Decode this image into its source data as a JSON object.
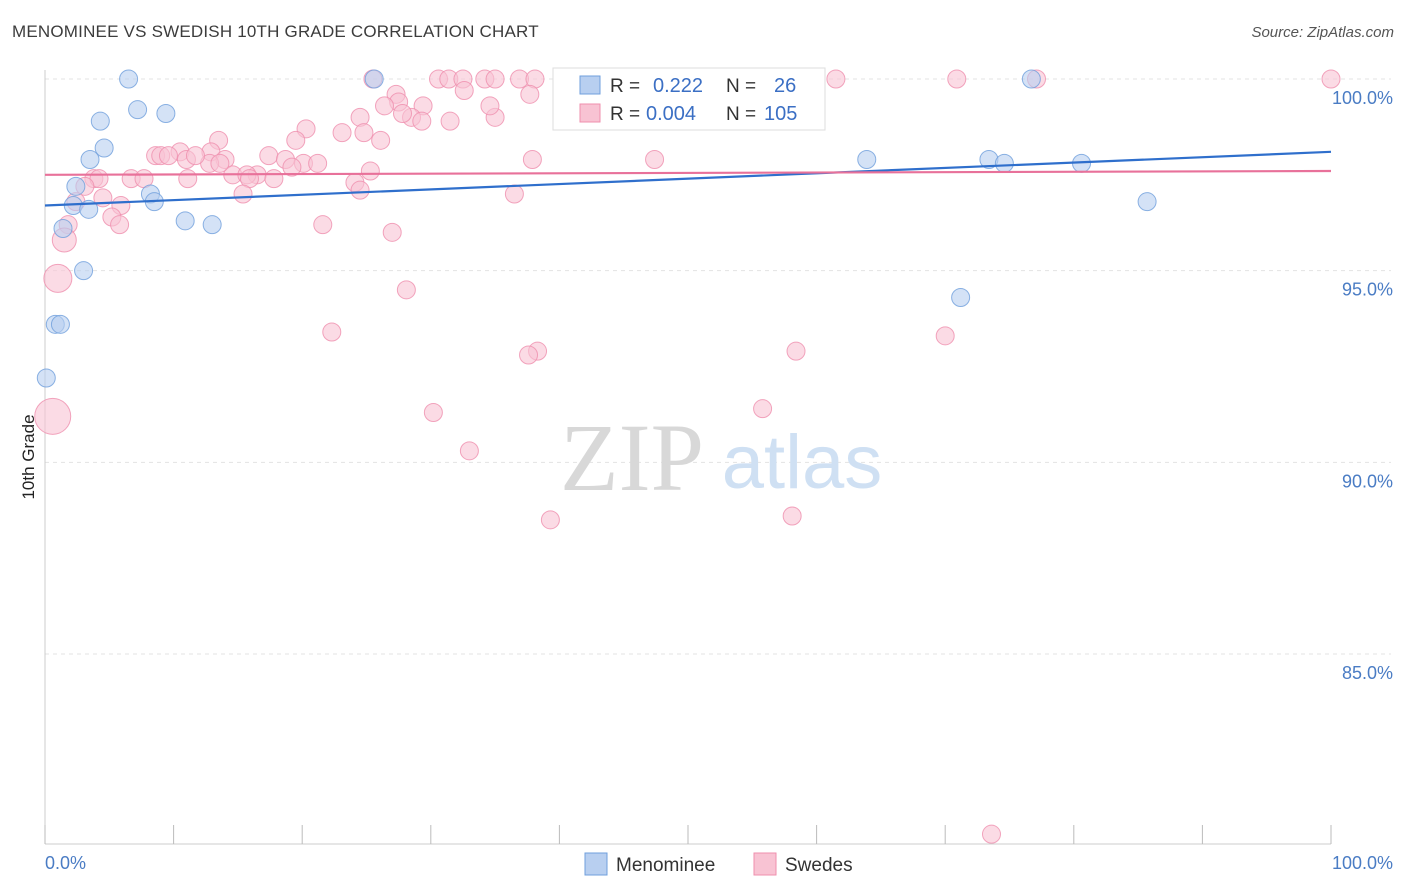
{
  "header": {
    "title": "MENOMINEE VS SWEDISH 10TH GRADE CORRELATION CHART",
    "source": "Source: ZipAtlas.com"
  },
  "watermark": {
    "zip": "ZIP",
    "atlas": "atlas"
  },
  "legend_box": {
    "rows": [
      {
        "r_label": "R =",
        "r_value": "0.222",
        "n_label": "N =",
        "n_value": "26"
      },
      {
        "r_label": "R =",
        "r_value": "0.004",
        "n_label": "N =",
        "n_value": "105"
      }
    ]
  },
  "bottom_legend": {
    "items": [
      "Menominee",
      "Swedes"
    ]
  },
  "colors": {
    "menominee_fill": "#b8cff0",
    "menominee_stroke": "#6f9fdc",
    "menominee_line": "#2f6fcc",
    "swedes_fill": "#f8c3d3",
    "swedes_stroke": "#ef8fae",
    "swedes_line": "#e8719a",
    "axis_text": "#4a7cc4",
    "grid": "#e3e3e3"
  },
  "chart_data": {
    "type": "scatter",
    "title": "MENOMINEE VS SWEDISH 10TH GRADE CORRELATION CHART",
    "xlabel": "",
    "ylabel": "10th Grade",
    "xlim": [
      0,
      100
    ],
    "ylim": [
      80.0,
      100.8
    ],
    "x_tick_labels": [
      "0.0%",
      "100.0%"
    ],
    "y_ticks": [
      85.0,
      90.0,
      95.0,
      100.0
    ],
    "y_tick_labels": [
      "85.0%",
      "90.0%",
      "95.0%",
      "100.0%"
    ],
    "grid": true,
    "legend_position": "top-center",
    "series": [
      {
        "name": "Menominee",
        "trend": {
          "x": [
            0,
            100
          ],
          "y": [
            96.7,
            98.1
          ]
        },
        "points": [
          {
            "x": 6.5,
            "y": 100.0
          },
          {
            "x": 25.6,
            "y": 100.0
          },
          {
            "x": 76.7,
            "y": 100.0
          },
          {
            "x": 7.2,
            "y": 99.2
          },
          {
            "x": 9.4,
            "y": 99.1
          },
          {
            "x": 4.3,
            "y": 98.9
          },
          {
            "x": 4.6,
            "y": 98.2
          },
          {
            "x": 3.5,
            "y": 97.9
          },
          {
            "x": 63.9,
            "y": 97.9
          },
          {
            "x": 73.4,
            "y": 97.9
          },
          {
            "x": 74.6,
            "y": 97.8
          },
          {
            "x": 80.6,
            "y": 97.8
          },
          {
            "x": 2.4,
            "y": 97.2
          },
          {
            "x": 8.2,
            "y": 97.0
          },
          {
            "x": 2.2,
            "y": 96.7
          },
          {
            "x": 8.5,
            "y": 96.8
          },
          {
            "x": 3.4,
            "y": 96.6
          },
          {
            "x": 10.9,
            "y": 96.3
          },
          {
            "x": 13.0,
            "y": 96.2
          },
          {
            "x": 85.7,
            "y": 96.8
          },
          {
            "x": 1.4,
            "y": 96.1
          },
          {
            "x": 3.0,
            "y": 95.0
          },
          {
            "x": 71.2,
            "y": 94.3
          },
          {
            "x": 0.8,
            "y": 93.6
          },
          {
            "x": 1.2,
            "y": 93.6
          },
          {
            "x": 0.1,
            "y": 92.2
          }
        ]
      },
      {
        "name": "Swedes",
        "trend": {
          "x": [
            0,
            100
          ],
          "y": [
            97.5,
            97.6
          ]
        },
        "points": [
          {
            "x": 25.5,
            "y": 100.0
          },
          {
            "x": 30.6,
            "y": 100.0
          },
          {
            "x": 31.4,
            "y": 100.0
          },
          {
            "x": 32.5,
            "y": 100.0
          },
          {
            "x": 34.2,
            "y": 100.0
          },
          {
            "x": 35.0,
            "y": 100.0
          },
          {
            "x": 36.9,
            "y": 100.0
          },
          {
            "x": 38.1,
            "y": 100.0
          },
          {
            "x": 40.5,
            "y": 100.0
          },
          {
            "x": 41.2,
            "y": 100.0
          },
          {
            "x": 42.8,
            "y": 100.0
          },
          {
            "x": 43.5,
            "y": 100.0
          },
          {
            "x": 44.6,
            "y": 100.0
          },
          {
            "x": 46.0,
            "y": 100.0
          },
          {
            "x": 47.5,
            "y": 100.0
          },
          {
            "x": 48.9,
            "y": 100.0
          },
          {
            "x": 50.2,
            "y": 100.0
          },
          {
            "x": 51.0,
            "y": 100.0
          },
          {
            "x": 52.3,
            "y": 100.0
          },
          {
            "x": 53.5,
            "y": 100.0
          },
          {
            "x": 54.8,
            "y": 100.0
          },
          {
            "x": 56.0,
            "y": 100.0
          },
          {
            "x": 59.6,
            "y": 100.0
          },
          {
            "x": 61.5,
            "y": 100.0
          },
          {
            "x": 70.9,
            "y": 100.0
          },
          {
            "x": 77.1,
            "y": 100.0
          },
          {
            "x": 100.0,
            "y": 100.0
          },
          {
            "x": 27.3,
            "y": 99.6
          },
          {
            "x": 32.6,
            "y": 99.7
          },
          {
            "x": 37.7,
            "y": 99.6
          },
          {
            "x": 41.4,
            "y": 99.7
          },
          {
            "x": 45.3,
            "y": 99.5
          },
          {
            "x": 50.8,
            "y": 99.6
          },
          {
            "x": 27.5,
            "y": 99.4
          },
          {
            "x": 29.4,
            "y": 99.3
          },
          {
            "x": 24.5,
            "y": 99.0
          },
          {
            "x": 28.5,
            "y": 99.0
          },
          {
            "x": 29.3,
            "y": 98.9
          },
          {
            "x": 31.5,
            "y": 98.9
          },
          {
            "x": 35.0,
            "y": 99.0
          },
          {
            "x": 23.1,
            "y": 98.6
          },
          {
            "x": 24.8,
            "y": 98.6
          },
          {
            "x": 20.3,
            "y": 98.7
          },
          {
            "x": 19.5,
            "y": 98.4
          },
          {
            "x": 26.1,
            "y": 98.4
          },
          {
            "x": 13.5,
            "y": 98.4
          },
          {
            "x": 10.5,
            "y": 98.1
          },
          {
            "x": 12.9,
            "y": 98.1
          },
          {
            "x": 8.6,
            "y": 98.0
          },
          {
            "x": 9.0,
            "y": 98.0
          },
          {
            "x": 9.6,
            "y": 98.0
          },
          {
            "x": 14.0,
            "y": 97.9
          },
          {
            "x": 17.4,
            "y": 98.0
          },
          {
            "x": 11.0,
            "y": 97.9
          },
          {
            "x": 12.8,
            "y": 97.8
          },
          {
            "x": 18.7,
            "y": 97.9
          },
          {
            "x": 20.1,
            "y": 97.8
          },
          {
            "x": 21.2,
            "y": 97.8
          },
          {
            "x": 37.9,
            "y": 97.9
          },
          {
            "x": 47.4,
            "y": 97.9
          },
          {
            "x": 19.2,
            "y": 97.7
          },
          {
            "x": 25.3,
            "y": 97.6
          },
          {
            "x": 16.5,
            "y": 97.5
          },
          {
            "x": 17.8,
            "y": 97.4
          },
          {
            "x": 14.6,
            "y": 97.5
          },
          {
            "x": 15.7,
            "y": 97.5
          },
          {
            "x": 3.8,
            "y": 97.4
          },
          {
            "x": 4.2,
            "y": 97.4
          },
          {
            "x": 6.7,
            "y": 97.4
          },
          {
            "x": 7.7,
            "y": 97.4
          },
          {
            "x": 11.1,
            "y": 97.4
          },
          {
            "x": 15.9,
            "y": 97.4
          },
          {
            "x": 3.1,
            "y": 97.2
          },
          {
            "x": 24.1,
            "y": 97.3
          },
          {
            "x": 24.5,
            "y": 97.1
          },
          {
            "x": 2.4,
            "y": 96.8
          },
          {
            "x": 4.5,
            "y": 96.9
          },
          {
            "x": 5.9,
            "y": 96.7
          },
          {
            "x": 15.4,
            "y": 97.0
          },
          {
            "x": 36.5,
            "y": 97.0
          },
          {
            "x": 5.2,
            "y": 96.4
          },
          {
            "x": 5.8,
            "y": 96.2
          },
          {
            "x": 21.6,
            "y": 96.2
          },
          {
            "x": 27.0,
            "y": 96.0
          },
          {
            "x": 1.8,
            "y": 96.2
          },
          {
            "x": 1.5,
            "y": 95.8
          },
          {
            "x": 1.0,
            "y": 94.8
          },
          {
            "x": 28.1,
            "y": 94.5
          },
          {
            "x": 22.3,
            "y": 93.4
          },
          {
            "x": 70.0,
            "y": 93.3
          },
          {
            "x": 38.3,
            "y": 92.9
          },
          {
            "x": 58.4,
            "y": 92.9
          },
          {
            "x": 37.6,
            "y": 92.8
          },
          {
            "x": 0.6,
            "y": 91.2
          },
          {
            "x": 30.2,
            "y": 91.3
          },
          {
            "x": 55.8,
            "y": 91.4
          },
          {
            "x": 33.0,
            "y": 90.3
          },
          {
            "x": 39.3,
            "y": 88.5
          },
          {
            "x": 58.1,
            "y": 88.6
          },
          {
            "x": 73.6,
            "y": 80.3
          },
          {
            "x": 11.7,
            "y": 98.0
          },
          {
            "x": 13.6,
            "y": 97.8
          },
          {
            "x": 27.8,
            "y": 99.1
          },
          {
            "x": 34.6,
            "y": 99.3
          },
          {
            "x": 26.4,
            "y": 99.3
          }
        ]
      }
    ]
  }
}
